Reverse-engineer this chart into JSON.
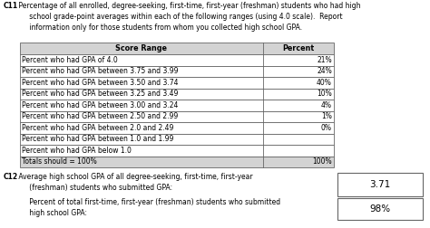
{
  "table_col1_header": "Score Range",
  "table_col2_header": "Percent",
  "rows": [
    [
      "Percent who had GPA of 4.0",
      "21%"
    ],
    [
      "Percent who had GPA between 3.75 and 3.99",
      "24%"
    ],
    [
      "Percent who had GPA between 3.50 and 3.74",
      "40%"
    ],
    [
      "Percent who had GPA between 3.25 and 3.49",
      "10%"
    ],
    [
      "Percent who had GPA between 3.00 and 3.24",
      "4%"
    ],
    [
      "Percent who had GPA between 2.50 and 2.99",
      "1%"
    ],
    [
      "Percent who had GPA between 2.0 and 2.49",
      "0%"
    ],
    [
      "Percent who had GPA between 1.0 and 1.99",
      ""
    ],
    [
      "Percent who had GPA below 1.0",
      ""
    ],
    [
      "Totals should = 100%",
      "100%"
    ]
  ],
  "c12_value": "3.71",
  "c12_sub_value": "98%",
  "header_bg": "#d3d3d3",
  "cell_bg": "#ffffff",
  "border_color": "#666666",
  "text_color": "#000000",
  "font_size": 5.5,
  "header_font_size": 5.8,
  "c11_bold": "C11",
  "c11_rest": " Percentage of all enrolled, degree-seeking, first-time, first-year (freshman) students who had high\n      school grade-point averages within each of the following ranges (using 4.0 scale).  Report\n      information only for those students from whom you collected high school GPA.",
  "c12_bold": "C12",
  "c12_rest": " Average high school GPA of all degree-seeking, first-time, first-year\n      (freshman) students who submitted GPA:",
  "c12_sub_label": "      Percent of total first-time, first-year (freshman) students who submitted\n      high school GPA:"
}
